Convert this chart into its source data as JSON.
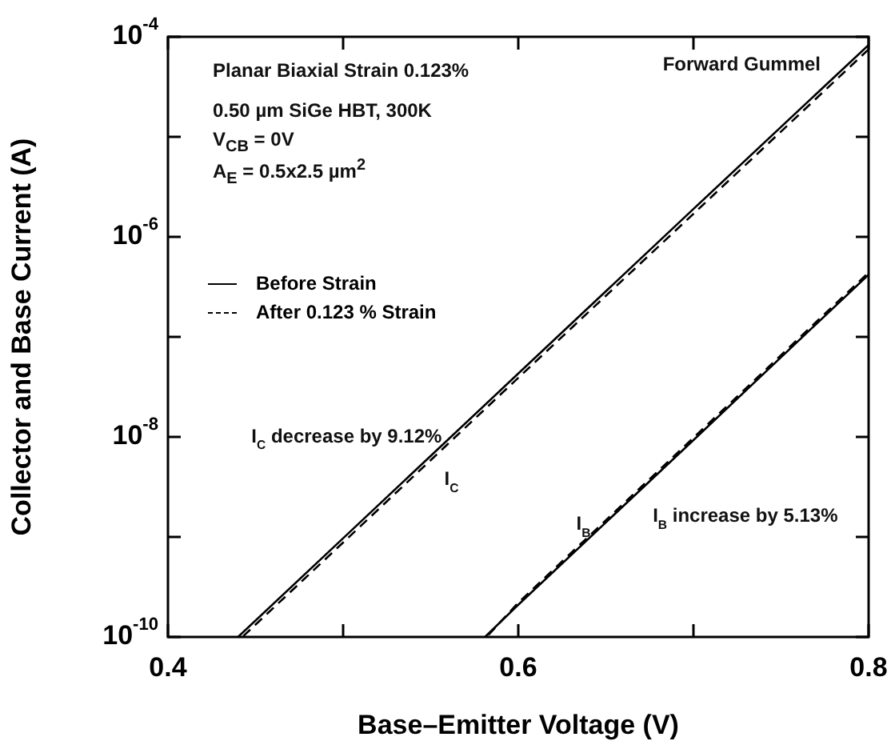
{
  "chart_data": {
    "type": "line",
    "xlabel": "Base–Emitter Voltage (V)",
    "ylabel": "Collector and Base Current (A)",
    "xlim": [
      0.4,
      0.8
    ],
    "xticks": [
      0.4,
      {
        "value": 0.5,
        "label": null
      },
      0.6,
      {
        "value": 0.7,
        "label": null
      },
      0.8
    ],
    "ylim": [
      1e-10,
      0.0001
    ],
    "yticks": [
      {
        "value": 1e-10,
        "label": "10$^{-10}$"
      },
      {
        "value": 1e-09,
        "label": null
      },
      {
        "value": 1e-08,
        "label": "10$^{-8}$"
      },
      {
        "value": 1e-07,
        "label": null
      },
      {
        "value": 1e-06,
        "label": "10$^{-6}$"
      },
      {
        "value": 1e-05,
        "label": null
      },
      {
        "value": 0.0001,
        "label": "10$^{-4}$"
      }
    ],
    "log": "y",
    "grid": false,
    "legend": "left",
    "marker": "none",
    "series": [
      {
        "name": "Before Strain",
        "color": "#000000",
        "line_style": "solid",
        "x": [
          0.44,
          0.5,
          0.6,
          0.7,
          0.8
        ],
        "values": [
          1e-10,
          9.7e-10,
          4.3e-08,
          1.9e-06,
          8.3e-05
        ]
      },
      {
        "name": "After 0.123 % Strain",
        "color": "#000000",
        "line_style": "dashed",
        "x": [
          0.443,
          0.5,
          0.6,
          0.7,
          0.8
        ],
        "values": [
          1.02e-10,
          8.8e-10,
          3.9e-08,
          1.7e-06,
          7.5e-05
        ]
      },
      {
        "color": "#000000",
        "line_style": "solid",
        "x": [
          0.581,
          0.6,
          0.7,
          0.8
        ],
        "values": [
          1e-10,
          2.1e-10,
          9.3e-09,
          4.2e-07
        ]
      },
      {
        "color": "#000000",
        "line_style": "dashed",
        "x": [
          0.583,
          0.6,
          0.7,
          0.8
        ],
        "values": [
          1.05e-10,
          2.2e-10,
          9.8e-09,
          4.4e-07
        ]
      }
    ],
    "annotations": [
      "Forward Gummel",
      "Planar Biaxial Strain 0.123%",
      "0.50  µm SiGe HBT,  300K",
      "V$_{CB}$ = 0V",
      "A$_{E}$ = 0.5x2.5 µm$^{2}$",
      {
        "text": "I$_{C}$ decrease by 9.12%",
        "x": 0.56,
        "y": 1e-08
      },
      {
        "text": "I$_{C}$",
        "x": 0.545,
        "y": 5.4e-09
      },
      {
        "text": "I$_{B}$",
        "x": 0.645,
        "y": 1.15e-09
      },
      {
        "text": "I$_{B}$ increase by 5.13%",
        "x": 0.664,
        "y": 2.3e-09
      }
    ]
  }
}
